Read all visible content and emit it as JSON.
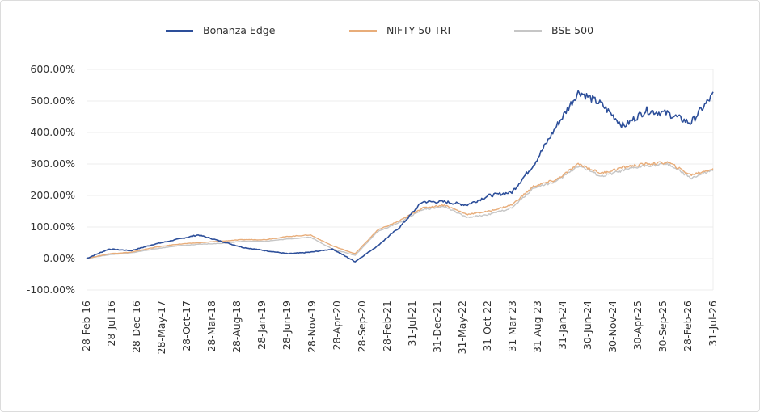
{
  "chart_data": {
    "type": "line",
    "title": "",
    "xlabel": "",
    "ylabel": "",
    "ylim": [
      -100,
      600
    ],
    "y_ticks": [
      "600.00%",
      "500.00%",
      "400.00%",
      "300.00%",
      "200.00%",
      "100.00%",
      "0.00%",
      "-100.00%"
    ],
    "y_tick_values": [
      600,
      500,
      400,
      300,
      200,
      100,
      0,
      -100
    ],
    "x_ticks": [
      "28-Feb-16",
      "28-Jul-16",
      "28-Dec-16",
      "28-May-17",
      "28-Oct-17",
      "28-Mar-18",
      "28-Aug-18",
      "28-Jan-19",
      "28-Jun-19",
      "28-Nov-19",
      "28-Apr-20",
      "28-Sep-20",
      "28-Feb-21",
      "31-Jul-21",
      "31-Dec-21",
      "31-May-22",
      "31-Oct-22",
      "31-Mar-23",
      "31-Aug-23",
      "31-Jan-24",
      "30-Jun-24",
      "30-Nov-24",
      "30-Apr-25",
      "30-Sep-25",
      "28-Feb-26",
      "31-Jul-26"
    ],
    "grid": true,
    "legend_position": "top",
    "series": [
      {
        "name": "Bonanza Edge",
        "color": "#2d4f9a",
        "values": [
          0,
          30,
          25,
          45,
          60,
          75,
          55,
          35,
          25,
          15,
          20,
          30,
          -10,
          40,
          100,
          180,
          180,
          170,
          200,
          210,
          300,
          420,
          530,
          490,
          420,
          470,
          460,
          430,
          520
        ]
      },
      {
        "name": "NIFTY 50 TRI",
        "color": "#e8ad7a",
        "values": [
          0,
          15,
          20,
          35,
          45,
          50,
          55,
          60,
          60,
          70,
          75,
          40,
          15,
          90,
          120,
          160,
          170,
          140,
          150,
          170,
          230,
          250,
          300,
          270,
          290,
          300,
          305,
          265,
          285
        ]
      },
      {
        "name": "BSE 500",
        "color": "#c6c6c6",
        "values": [
          0,
          12,
          18,
          30,
          40,
          45,
          48,
          55,
          55,
          62,
          68,
          30,
          10,
          85,
          115,
          155,
          165,
          130,
          140,
          160,
          225,
          245,
          295,
          260,
          280,
          295,
          300,
          255,
          280
        ]
      }
    ]
  }
}
